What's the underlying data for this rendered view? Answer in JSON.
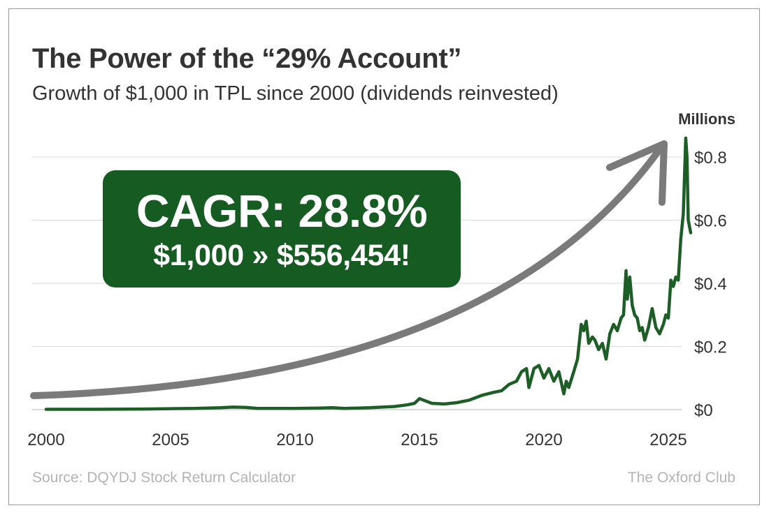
{
  "header": {
    "title": "The Power of the “29% Account”",
    "subtitle": "Growth of $1,000 in TPL since 2000 (dividends reinvested)"
  },
  "callout": {
    "headline": "CAGR: 28.8%",
    "detail": "$1,000 » $556,454!"
  },
  "footer": {
    "source": "Source: DQYDJ Stock Return Calculator",
    "brand": "The Oxford Club"
  },
  "colors": {
    "line": "#1d5e27",
    "callout_bg": "#155b22",
    "arrow": "#7a7a7a",
    "grid": "#d9d9d9",
    "text": "#333333"
  },
  "chart_data": {
    "type": "line",
    "title": "The Power of the “29% Account”",
    "subtitle": "Growth of $1,000 in TPL since 2000 (dividends reinvested)",
    "xlabel": "",
    "ylabel": "",
    "y_units_label": "Millions",
    "xlim": [
      2000,
      2026
    ],
    "ylim": [
      0,
      0.85
    ],
    "x_ticks": [
      2000,
      2005,
      2010,
      2015,
      2020,
      2025
    ],
    "x_tick_labels": [
      "2000",
      "2005",
      "2010",
      "2015",
      "2020",
      "2025"
    ],
    "y_ticks": [
      0,
      0.2,
      0.4,
      0.6,
      0.8
    ],
    "y_tick_labels": [
      "$0",
      "$0.2",
      "$0.4",
      "$0.6",
      "$0.8"
    ],
    "y_axis_side": "right",
    "grid": "horizontal",
    "series": [
      {
        "x": [
          2000,
          2002,
          2004,
          2005,
          2006,
          2007,
          2007.5,
          2008,
          2008.5,
          2009,
          2010,
          2011,
          2011.5,
          2012,
          2013,
          2013.5,
          2014,
          2014.5,
          2014.8,
          2015,
          2015.5,
          2016,
          2016.5,
          2017,
          2017.5,
          2018,
          2018.3,
          2018.6,
          2018.9,
          2019.1,
          2019.3,
          2019.4,
          2019.6,
          2019.8,
          2020.0,
          2020.2,
          2020.4,
          2020.6,
          2020.8,
          2020.9,
          2021.0,
          2021.2,
          2021.35,
          2021.5,
          2021.6,
          2021.7,
          2021.8,
          2021.95,
          2022.05,
          2022.2,
          2022.35,
          2022.5,
          2022.65,
          2022.8,
          2022.95,
          2023.1,
          2023.2,
          2023.3,
          2023.35,
          2023.45,
          2023.55,
          2023.65,
          2023.75,
          2023.85,
          2023.95,
          2024.05,
          2024.2,
          2024.35,
          2024.5,
          2024.65,
          2024.8,
          2024.9,
          2025.0,
          2025.1,
          2025.2,
          2025.3,
          2025.4,
          2025.5,
          2025.6,
          2025.7,
          2025.75,
          2025.8,
          2025.9
        ],
        "values": [
          0.001,
          0.001,
          0.002,
          0.003,
          0.004,
          0.006,
          0.008,
          0.007,
          0.004,
          0.004,
          0.004,
          0.005,
          0.006,
          0.004,
          0.006,
          0.008,
          0.01,
          0.015,
          0.02,
          0.035,
          0.02,
          0.018,
          0.022,
          0.03,
          0.045,
          0.055,
          0.06,
          0.08,
          0.09,
          0.12,
          0.13,
          0.07,
          0.13,
          0.14,
          0.1,
          0.13,
          0.09,
          0.12,
          0.05,
          0.09,
          0.07,
          0.12,
          0.16,
          0.27,
          0.25,
          0.28,
          0.21,
          0.23,
          0.22,
          0.19,
          0.21,
          0.16,
          0.24,
          0.27,
          0.25,
          0.29,
          0.3,
          0.44,
          0.35,
          0.42,
          0.33,
          0.3,
          0.29,
          0.25,
          0.26,
          0.22,
          0.26,
          0.32,
          0.26,
          0.24,
          0.27,
          0.3,
          0.29,
          0.41,
          0.39,
          0.42,
          0.41,
          0.54,
          0.62,
          0.86,
          0.8,
          0.6,
          0.56
        ]
      }
    ],
    "annotations": [
      {
        "type": "text_box",
        "text": "CAGR: 28.8%"
      },
      {
        "type": "text_box",
        "text": "$1,000 » $556,454!"
      },
      {
        "type": "arrow",
        "shape": "exponential-curve",
        "direction": "up-right"
      }
    ]
  }
}
